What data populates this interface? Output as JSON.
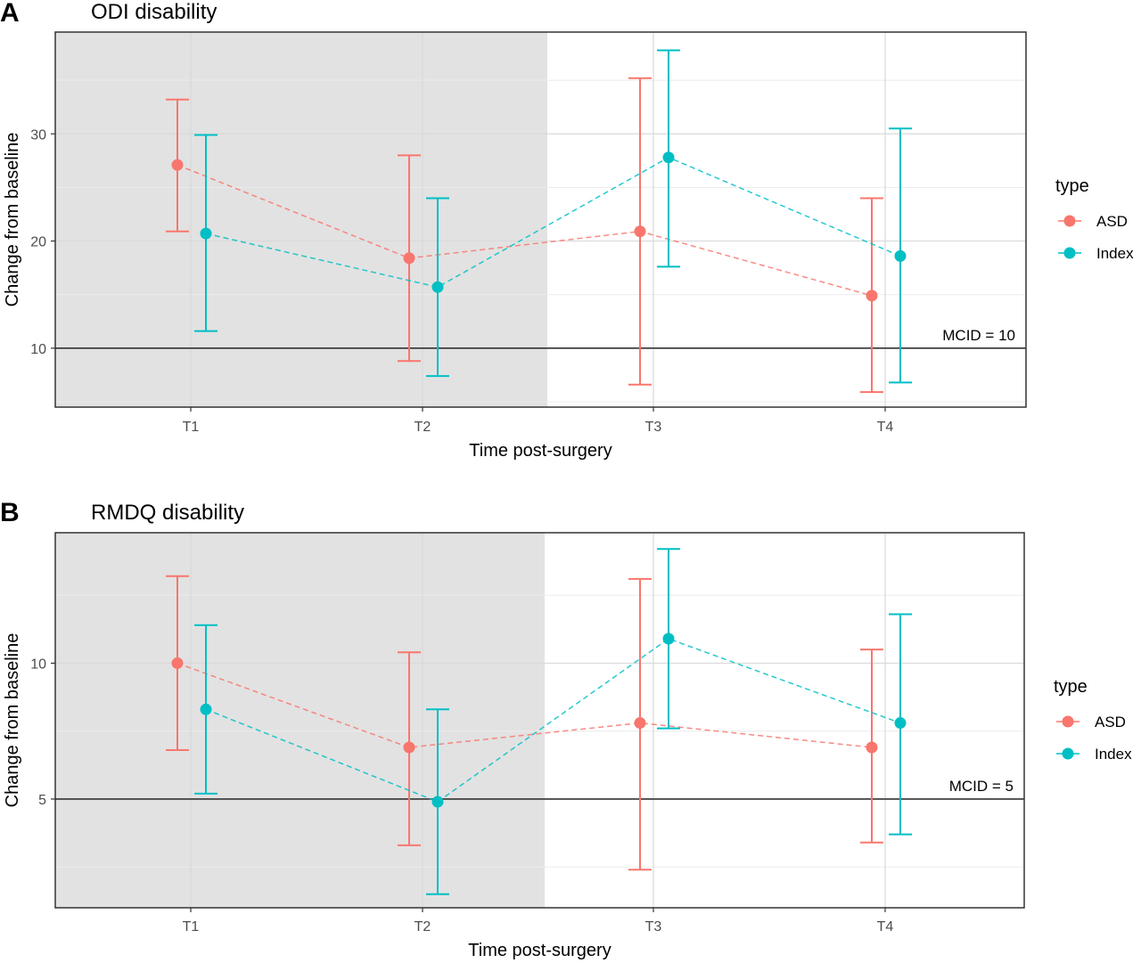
{
  "chart_data": [
    {
      "type": "scatter",
      "panel_letter": "A",
      "title": "ODI disability",
      "xlabel": "Time post-surgery",
      "ylabel": "Change from baseline",
      "categories": [
        "T1",
        "T2",
        "T3",
        "T4"
      ],
      "y_ticks": [
        10,
        20,
        30
      ],
      "ylim": [
        4.5,
        39.5
      ],
      "shaded_categories": [
        "T1",
        "T2"
      ],
      "grid": true,
      "legend": {
        "title": "type",
        "position": "right"
      },
      "reference_line": {
        "value": 10,
        "label": "MCID = 10"
      },
      "series": [
        {
          "name": "ASD",
          "color": "#F8766D",
          "values": [
            27.1,
            18.4,
            20.9,
            14.9
          ],
          "lower": [
            20.9,
            8.8,
            6.6,
            5.9
          ],
          "upper": [
            33.2,
            28.0,
            35.2,
            24.0
          ]
        },
        {
          "name": "Index",
          "color": "#00BFC4",
          "values": [
            20.7,
            15.7,
            27.8,
            18.6
          ],
          "lower": [
            11.6,
            7.4,
            17.6,
            6.8
          ],
          "upper": [
            29.9,
            24.0,
            37.8,
            30.5
          ]
        }
      ]
    },
    {
      "type": "scatter",
      "panel_letter": "B",
      "title": "RMDQ disability",
      "xlabel": "Time post-surgery",
      "ylabel": "Change from baseline",
      "categories": [
        "T1",
        "T2",
        "T3",
        "T4"
      ],
      "y_ticks": [
        5,
        10
      ],
      "ylim": [
        1.0,
        14.8
      ],
      "shaded_categories": [
        "T1",
        "T2"
      ],
      "grid": true,
      "legend": {
        "title": "type",
        "position": "right"
      },
      "reference_line": {
        "value": 5,
        "label": "MCID = 5"
      },
      "series": [
        {
          "name": "ASD",
          "color": "#F8766D",
          "values": [
            10.0,
            6.9,
            7.8,
            6.9
          ],
          "lower": [
            6.8,
            3.3,
            2.4,
            3.4
          ],
          "upper": [
            13.2,
            10.4,
            13.1,
            10.5
          ]
        },
        {
          "name": "Index",
          "color": "#00BFC4",
          "values": [
            8.3,
            4.9,
            10.9,
            7.8
          ],
          "lower": [
            5.2,
            1.5,
            7.6,
            3.7
          ],
          "upper": [
            11.4,
            8.3,
            14.2,
            11.8
          ]
        }
      ]
    }
  ]
}
